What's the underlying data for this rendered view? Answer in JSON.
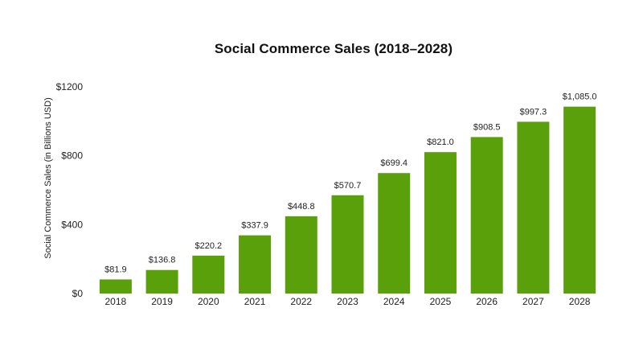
{
  "chart_data": {
    "type": "bar",
    "title": "Social Commerce Sales (2018–2028)",
    "xlabel": "",
    "ylabel": "Social Commerce Sales (in Billions USD)",
    "categories": [
      "2018",
      "2019",
      "2020",
      "2021",
      "2022",
      "2023",
      "2024",
      "2025",
      "2026",
      "2027",
      "2028"
    ],
    "values": [
      81.9,
      136.8,
      220.2,
      337.9,
      448.8,
      570.7,
      699.4,
      821.0,
      908.5,
      997.3,
      1085.0
    ],
    "data_labels": [
      "$81.9",
      "$136.8",
      "$220.2",
      "$337.9",
      "$448.8",
      "$570.7",
      "$699.4",
      "$821.0",
      "$908.5",
      "$997.3",
      "$1,085.0"
    ],
    "ylim": [
      0,
      1200
    ],
    "yticks": [
      0,
      400,
      800,
      1200
    ],
    "ytick_labels": [
      "$0",
      "$400",
      "$800",
      "$1200"
    ],
    "grid": false,
    "legend": "none",
    "bar_color": "#5aa00a"
  }
}
